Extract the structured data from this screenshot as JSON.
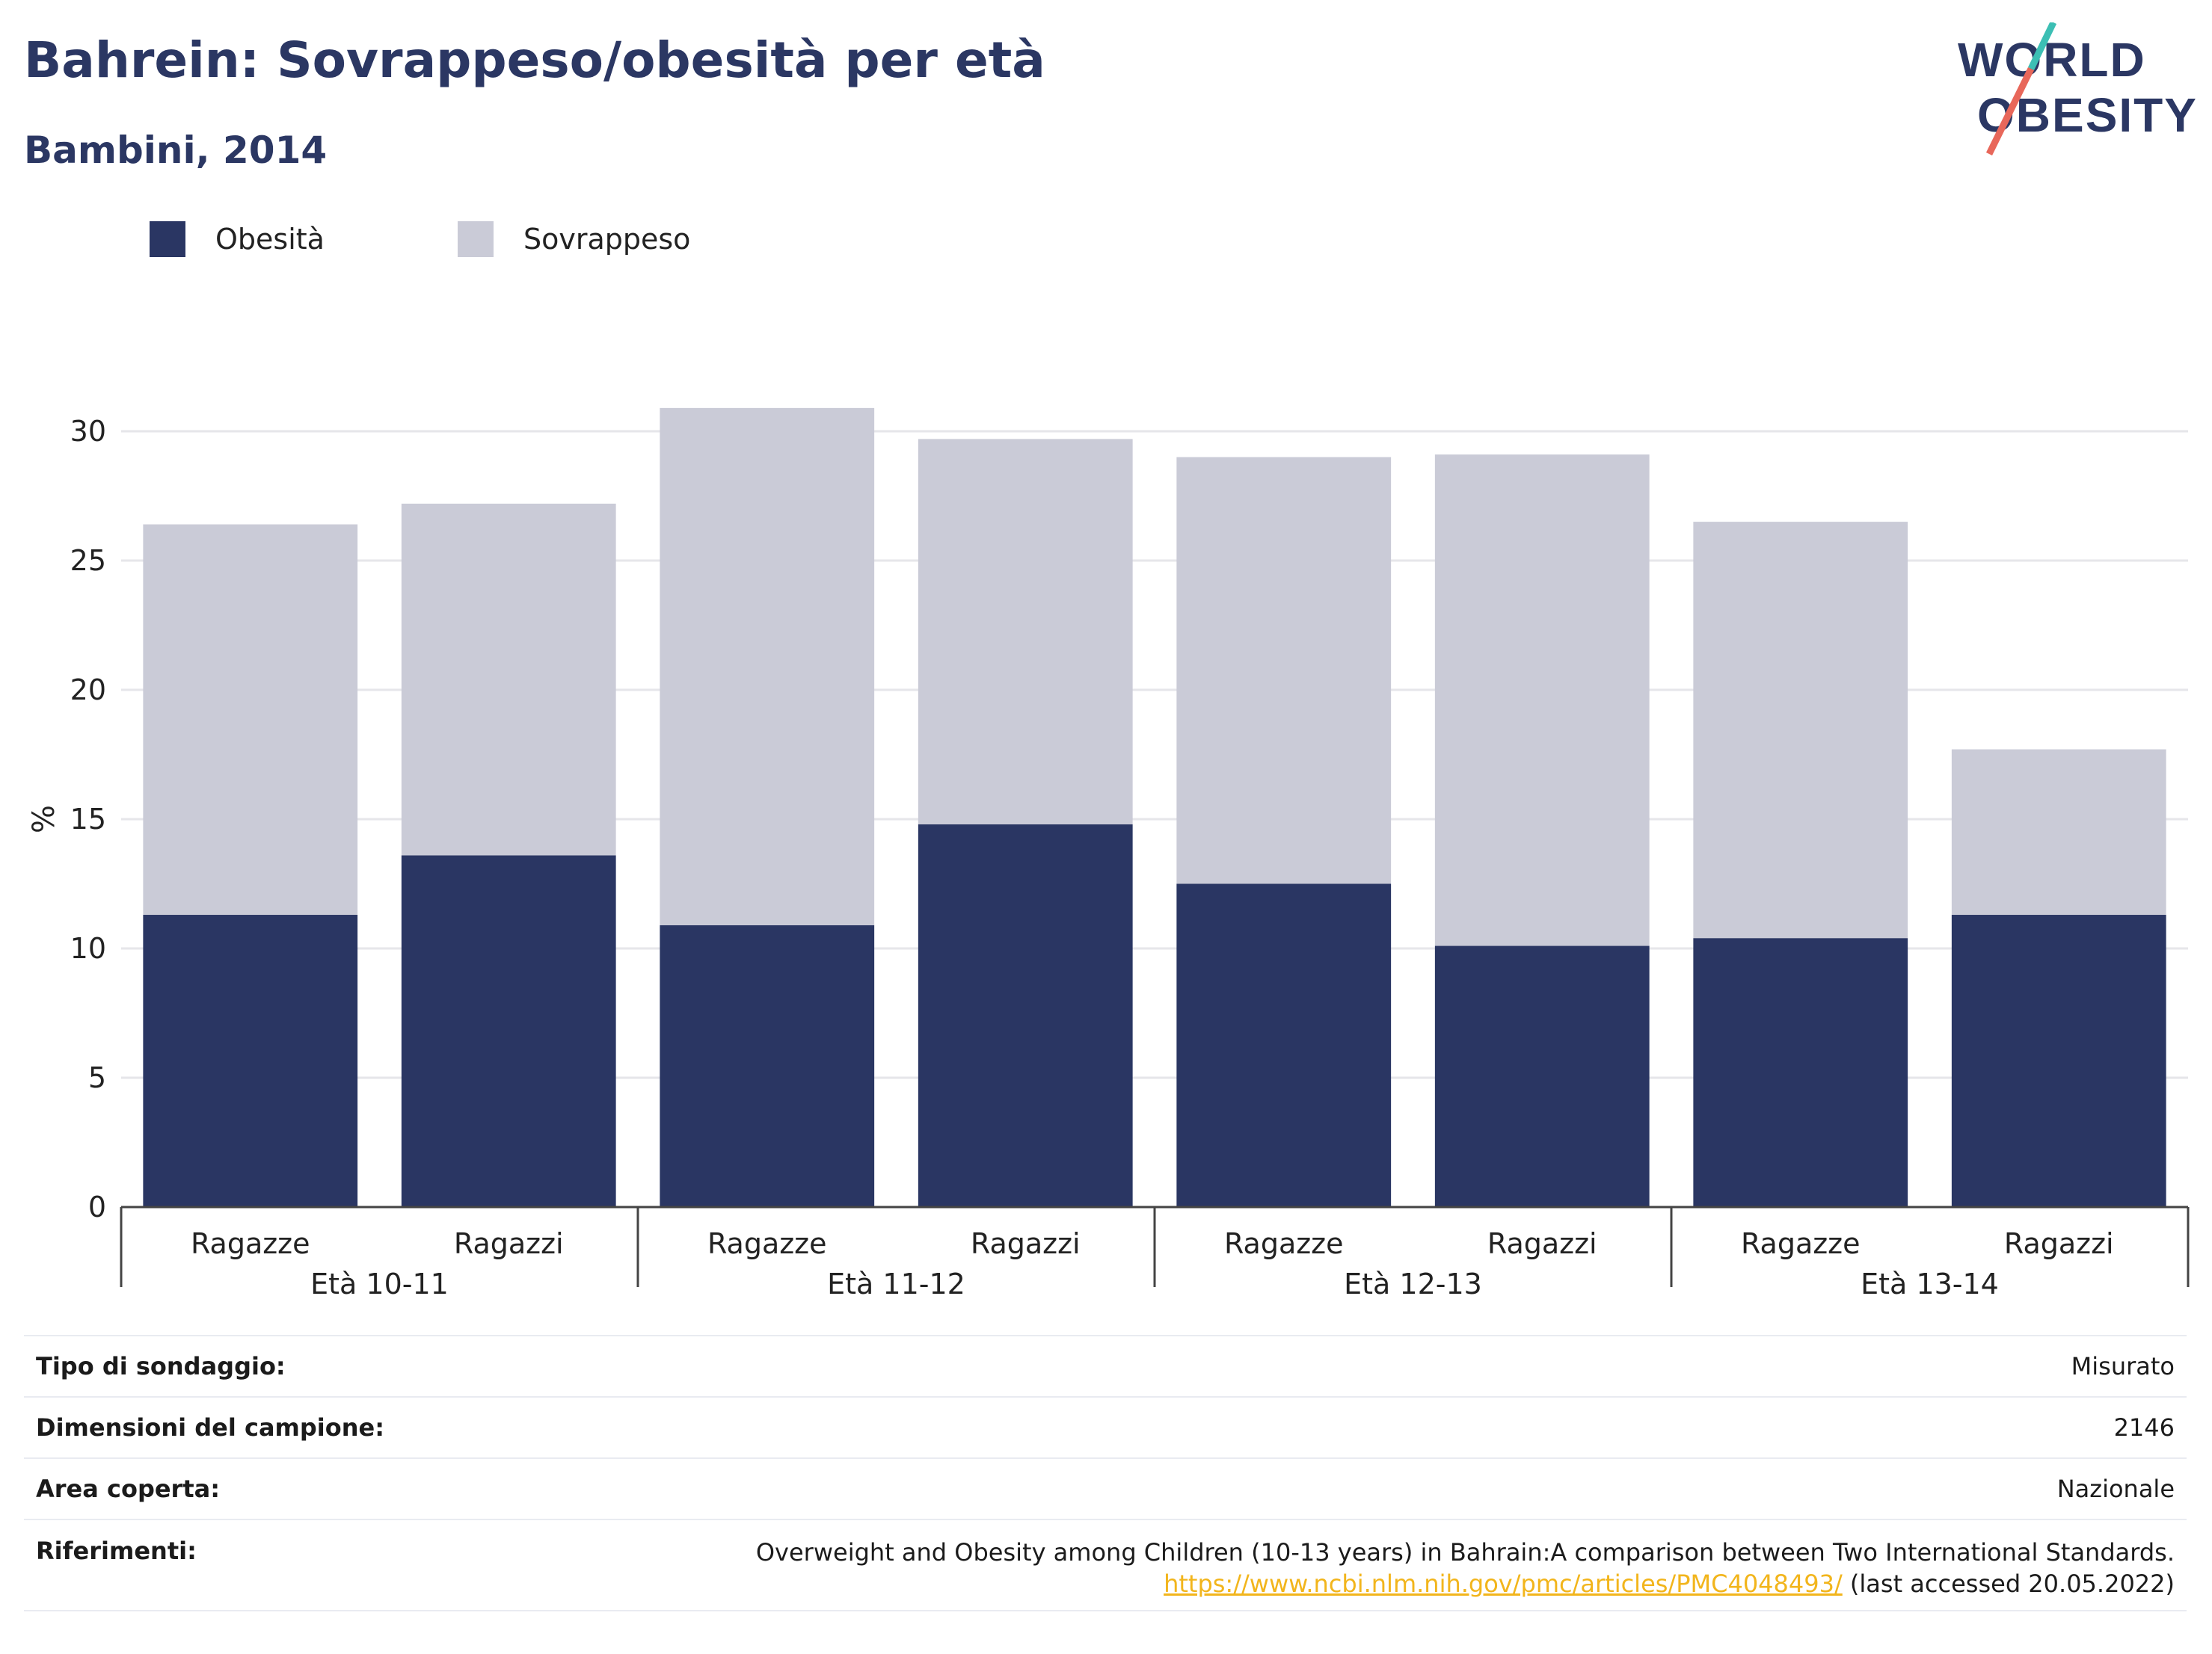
{
  "header": {
    "title": "Bahrein: Sovrappeso/obesità per età",
    "subtitle": "Bambini, 2014"
  },
  "logo": {
    "line1": "WORLD",
    "line2": "OBESITY",
    "colors": {
      "text": "#2b3763",
      "slash_top": "#3cbfb4",
      "slash_bottom": "#e8675a"
    }
  },
  "legend": [
    {
      "label": "Obesità",
      "color": "#2a3663"
    },
    {
      "label": "Sovrappeso",
      "color": "#cacbd7"
    }
  ],
  "chart_data": {
    "type": "bar",
    "stacked": true,
    "ylabel": "%",
    "ylim": [
      0,
      30
    ],
    "yticks": [
      0,
      5,
      10,
      15,
      20,
      25,
      30
    ],
    "grid": true,
    "legend_position": "top-left",
    "categories": [
      "Ragazze",
      "Ragazzi",
      "Ragazze",
      "Ragazzi",
      "Ragazze",
      "Ragazzi",
      "Ragazze",
      "Ragazzi"
    ],
    "groups": [
      {
        "label": "Età 10-11",
        "span": 2
      },
      {
        "label": "Età 11-12",
        "span": 2
      },
      {
        "label": "Età 12-13",
        "span": 2
      },
      {
        "label": "Età 13-14",
        "span": 2
      }
    ],
    "series": [
      {
        "name": "Obesità",
        "color": "#2a3663",
        "values": [
          11.3,
          13.6,
          10.9,
          14.8,
          12.5,
          10.1,
          10.4,
          11.3
        ]
      },
      {
        "name": "Sovrappeso",
        "color": "#cacbd7",
        "values": [
          15.1,
          13.6,
          20.0,
          14.9,
          16.5,
          19.0,
          16.1,
          6.4
        ]
      }
    ]
  },
  "info": {
    "rows": [
      {
        "label": "Tipo di sondaggio:",
        "value": "Misurato"
      },
      {
        "label": "Dimensioni del campione:",
        "value": "2146"
      },
      {
        "label": "Area coperta:",
        "value": "Nazionale"
      }
    ],
    "references": {
      "label": "Riferimenti:",
      "text": "Overweight and Obesity among Children (10-13 years) in Bahrain:A comparison between Two International Standards.",
      "link": "https://www.ncbi.nlm.nih.gov/pmc/articles/PMC4048493/",
      "accessed": "(last accessed 20.05.2022)"
    }
  }
}
